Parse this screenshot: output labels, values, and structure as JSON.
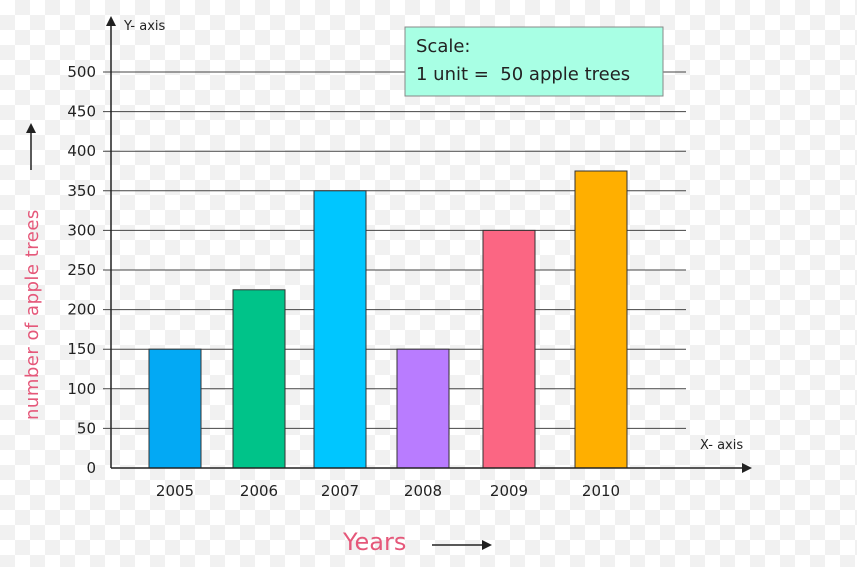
{
  "chart_data": {
    "type": "bar",
    "categories": [
      "2005",
      "2006",
      "2007",
      "2008",
      "2009",
      "2010"
    ],
    "values": [
      150,
      225,
      350,
      150,
      300,
      375
    ],
    "colors": [
      "#03a9f4",
      "#00c389",
      "#00c6ff",
      "#b97cff",
      "#fb6683",
      "#ffaf00"
    ],
    "xlabel": "Years",
    "ylabel": "number of apple trees",
    "x_axis_name": "X- axis",
    "y_axis_name": "Y- axis",
    "ylim": [
      0,
      500
    ],
    "yticks": [
      "0",
      "50",
      "100",
      "150",
      "200",
      "250",
      "300",
      "350",
      "400",
      "450",
      "500"
    ],
    "grid": true,
    "scale_box": {
      "title": "Scale:",
      "text": "1 unit =  50 apple trees",
      "background": "#a8ffe4"
    }
  }
}
